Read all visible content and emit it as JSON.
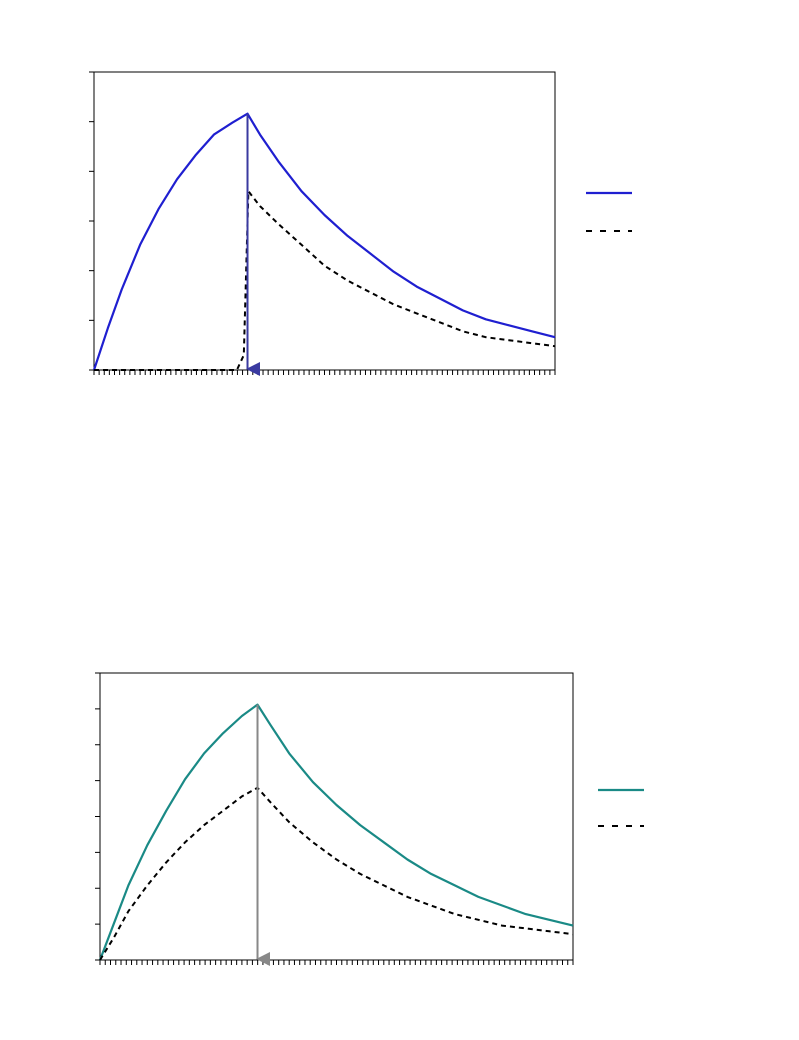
{
  "colors": {
    "top_series": "#1f1fd0",
    "bottom_series": "#1a8a86",
    "reference_series": "#000000",
    "top_arrow": "#3a3aa0",
    "bottom_arrow": "#888888",
    "axis": "#000000"
  },
  "chart_data": [
    {
      "type": "line",
      "title": "",
      "xlabel": "",
      "ylabel": "",
      "xlim": [
        0,
        1
      ],
      "ylim": [
        0,
        1
      ],
      "grid": false,
      "legend_position": "right",
      "x_minor_ticks": 90,
      "y_major_ticks": 7,
      "peak_x": 0.333,
      "marker": {
        "type": "arrow-down",
        "x": 0.333,
        "from_y": 0.86,
        "to_y": 0
      },
      "series": [
        {
          "style": "solid",
          "color": "#1f1fd0",
          "x": [
            0,
            0.03,
            0.06,
            0.1,
            0.14,
            0.18,
            0.22,
            0.26,
            0.3,
            0.333,
            0.36,
            0.4,
            0.45,
            0.5,
            0.55,
            0.6,
            0.65,
            0.7,
            0.75,
            0.8,
            0.85,
            0.9,
            0.95,
            1.0
          ],
          "y": [
            0,
            0.14,
            0.27,
            0.42,
            0.54,
            0.64,
            0.72,
            0.79,
            0.83,
            0.86,
            0.79,
            0.7,
            0.6,
            0.52,
            0.45,
            0.39,
            0.33,
            0.28,
            0.24,
            0.2,
            0.17,
            0.15,
            0.13,
            0.11
          ]
        },
        {
          "style": "dashed",
          "color": "#000000",
          "x": [
            0,
            0.31,
            0.325,
            0.335,
            0.345,
            0.36,
            0.4,
            0.45,
            0.5,
            0.55,
            0.6,
            0.65,
            0.7,
            0.75,
            0.8,
            0.85,
            0.9,
            0.95,
            1.0
          ],
          "y": [
            0,
            0,
            0.05,
            0.6,
            0.58,
            0.55,
            0.49,
            0.42,
            0.35,
            0.3,
            0.26,
            0.22,
            0.19,
            0.16,
            0.13,
            0.11,
            0.1,
            0.09,
            0.08
          ]
        }
      ]
    },
    {
      "type": "line",
      "title": "",
      "xlabel": "",
      "ylabel": "",
      "xlim": [
        0,
        1
      ],
      "ylim": [
        0,
        1
      ],
      "grid": false,
      "legend_position": "right",
      "x_minor_ticks": 90,
      "y_major_ticks": 9,
      "peak_x": 0.333,
      "marker": {
        "type": "arrow-down",
        "x": 0.333,
        "from_y": 0.89,
        "to_y": 0
      },
      "series": [
        {
          "style": "solid",
          "color": "#1a8a86",
          "x": [
            0,
            0.03,
            0.06,
            0.1,
            0.14,
            0.18,
            0.22,
            0.26,
            0.3,
            0.333,
            0.36,
            0.4,
            0.45,
            0.5,
            0.55,
            0.6,
            0.65,
            0.7,
            0.75,
            0.8,
            0.85,
            0.9,
            0.95,
            1.0
          ],
          "y": [
            0,
            0.13,
            0.26,
            0.4,
            0.52,
            0.63,
            0.72,
            0.79,
            0.85,
            0.89,
            0.82,
            0.72,
            0.62,
            0.54,
            0.47,
            0.41,
            0.35,
            0.3,
            0.26,
            0.22,
            0.19,
            0.16,
            0.14,
            0.12
          ]
        },
        {
          "style": "dashed",
          "color": "#000000",
          "x": [
            0,
            0.03,
            0.06,
            0.1,
            0.14,
            0.18,
            0.22,
            0.26,
            0.3,
            0.333,
            0.36,
            0.4,
            0.45,
            0.5,
            0.55,
            0.6,
            0.65,
            0.7,
            0.75,
            0.8,
            0.85,
            0.9,
            0.95,
            1.0
          ],
          "y": [
            0,
            0.08,
            0.17,
            0.26,
            0.34,
            0.41,
            0.47,
            0.52,
            0.57,
            0.6,
            0.55,
            0.48,
            0.41,
            0.35,
            0.3,
            0.26,
            0.22,
            0.19,
            0.16,
            0.14,
            0.12,
            0.11,
            0.1,
            0.09
          ]
        }
      ]
    }
  ]
}
